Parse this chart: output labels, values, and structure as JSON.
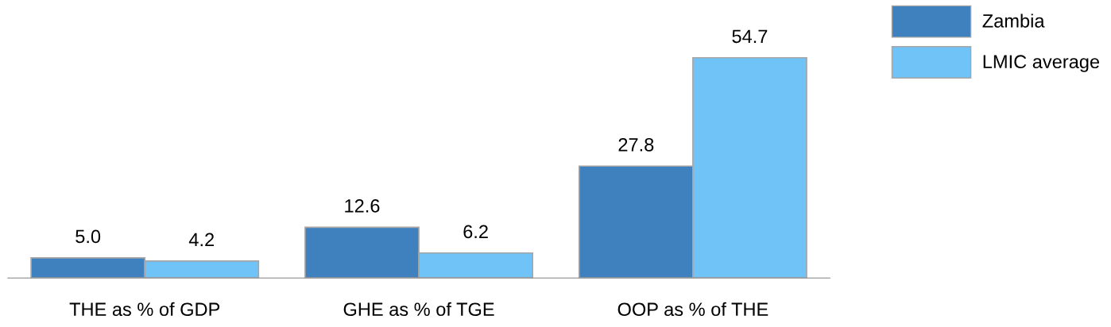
{
  "chart_data": {
    "type": "bar",
    "categories": [
      "THE as % of GDP",
      "GHE as % of TGE",
      "OOP as % of THE"
    ],
    "series": [
      {
        "name": "Zambia",
        "color": "#3f80bf",
        "values": [
          5.0,
          12.6,
          27.8
        ],
        "value_labels": [
          "5.0",
          "12.6",
          "27.8"
        ]
      },
      {
        "name": "LMIC average",
        "color": "#6fc3f7",
        "values": [
          4.2,
          6.2,
          54.7
        ],
        "value_labels": [
          "4.2",
          "6.2",
          "54.7"
        ]
      }
    ],
    "legend": "top right",
    "grid": false,
    "tick_labels": "x"
  }
}
